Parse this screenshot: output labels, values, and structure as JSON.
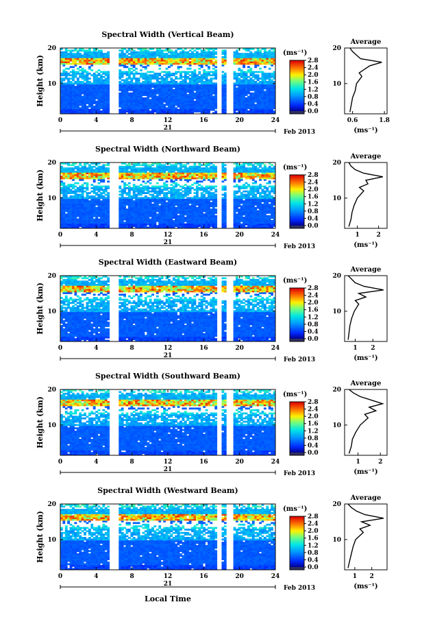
{
  "figure": {
    "xlabel": "Local Time",
    "date_label": "21",
    "month_label": "Feb 2013",
    "colorbar_unit": "(ms⁻¹)",
    "colorbar_ticks": [
      "0.0",
      "0.4",
      "0.8",
      "1.2",
      "1.6",
      "2.0",
      "2.4",
      "2.8"
    ],
    "avg_title": "Average",
    "avg_xlabel": "(ms⁻¹)"
  },
  "chart_data": [
    {
      "type": "heatmap",
      "title": "Spectral Width (Vertical Beam)",
      "ylabel": "Height (km)",
      "xlabel": "Local Time",
      "x_ticks": [
        0,
        4,
        8,
        12,
        16,
        20,
        24
      ],
      "y_ticks": [
        10,
        20
      ],
      "xlim": [
        0,
        24
      ],
      "ylim": [
        1.5,
        20
      ],
      "color_range": [
        0,
        2.8
      ],
      "colorbar_label": "(ms⁻¹)",
      "data_gaps_hours": [
        [
          5.4,
          6.5
        ],
        [
          17.6,
          18.0
        ],
        [
          18.6,
          19.2
        ]
      ],
      "average_profile": {
        "title": "Average",
        "xlabel": "(ms⁻¹)",
        "x_ticks": [
          "0.6",
          "1.8"
        ],
        "y_ticks": [
          10,
          20
        ],
        "height_km": [
          2,
          4,
          6,
          8,
          10,
          12,
          13,
          14,
          15,
          16,
          17,
          18,
          19,
          20
        ],
        "width_ms": [
          0.5,
          0.55,
          0.6,
          0.7,
          0.75,
          0.95,
          0.85,
          1.05,
          1.25,
          1.7,
          0.9,
          0.75,
          0.6,
          0.5
        ]
      }
    },
    {
      "type": "heatmap",
      "title": "Spectral Width (Northward Beam)",
      "ylabel": "Height (km)",
      "xlabel": "Local Time",
      "x_ticks": [
        0,
        4,
        8,
        12,
        16,
        20,
        24
      ],
      "y_ticks": [
        10,
        20
      ],
      "xlim": [
        0,
        24
      ],
      "ylim": [
        1.5,
        20
      ],
      "color_range": [
        0,
        2.8
      ],
      "colorbar_label": "(ms⁻¹)",
      "data_gaps_hours": [
        [
          5.4,
          6.5
        ],
        [
          17.6,
          18.0
        ],
        [
          18.6,
          19.2
        ]
      ],
      "average_profile": {
        "title": "Average",
        "xlabel": "(ms⁻¹)",
        "x_ticks": [
          "1",
          "2"
        ],
        "y_ticks": [
          10,
          20
        ],
        "height_km": [
          2,
          4,
          6,
          8,
          10,
          12,
          13,
          14,
          15,
          16,
          17,
          18,
          19,
          20
        ],
        "width_ms": [
          0.6,
          0.7,
          0.75,
          0.85,
          1.0,
          1.3,
          1.1,
          1.5,
          1.4,
          2.2,
          1.3,
          0.9,
          0.7,
          0.6
        ]
      }
    },
    {
      "type": "heatmap",
      "title": "Spectral Width (Eastward Beam)",
      "ylabel": "Height (km)",
      "xlabel": "Local Time",
      "x_ticks": [
        0,
        4,
        8,
        12,
        16,
        20,
        24
      ],
      "y_ticks": [
        10,
        20
      ],
      "xlim": [
        0,
        24
      ],
      "ylim": [
        1.5,
        20
      ],
      "color_range": [
        0,
        2.8
      ],
      "colorbar_label": "(ms⁻¹)",
      "data_gaps_hours": [
        [
          5.4,
          6.5
        ],
        [
          17.6,
          18.0
        ],
        [
          18.6,
          19.2
        ]
      ],
      "average_profile": {
        "title": "Average",
        "xlabel": "(ms⁻¹)",
        "x_ticks": [
          "1",
          "2"
        ],
        "y_ticks": [
          10,
          20
        ],
        "height_km": [
          2,
          4,
          6,
          8,
          10,
          12,
          13,
          14,
          15,
          16,
          17,
          18,
          19,
          20
        ],
        "width_ms": [
          0.6,
          0.65,
          0.7,
          0.8,
          0.95,
          1.2,
          1.0,
          1.6,
          1.2,
          2.6,
          1.5,
          1.0,
          0.8,
          0.6
        ]
      }
    },
    {
      "type": "heatmap",
      "title": "Spectral Width (Southward Beam)",
      "ylabel": "Height (km)",
      "xlabel": "Local Time",
      "x_ticks": [
        0,
        4,
        8,
        12,
        16,
        20,
        24
      ],
      "y_ticks": [
        10,
        20
      ],
      "xlim": [
        0,
        24
      ],
      "ylim": [
        1.5,
        20
      ],
      "color_range": [
        0,
        2.8
      ],
      "colorbar_label": "(ms⁻¹)",
      "data_gaps_hours": [
        [
          5.4,
          6.5
        ],
        [
          17.6,
          18.0
        ],
        [
          18.6,
          19.2
        ]
      ],
      "average_profile": {
        "title": "Average",
        "xlabel": "(ms⁻¹)",
        "x_ticks": [
          "1",
          "2"
        ],
        "y_ticks": [
          10,
          20
        ],
        "height_km": [
          2,
          4,
          6,
          8,
          10,
          12,
          13,
          14,
          15,
          16,
          17,
          18,
          19,
          20
        ],
        "width_ms": [
          0.6,
          0.7,
          0.75,
          0.9,
          1.1,
          1.45,
          1.3,
          1.8,
          1.5,
          2.1,
          1.6,
          1.1,
          0.8,
          0.6
        ]
      }
    },
    {
      "type": "heatmap",
      "title": "Spectral Width (Westward Beam)",
      "ylabel": "Height (km)",
      "xlabel": "Local Time",
      "x_ticks": [
        0,
        4,
        8,
        12,
        16,
        20,
        24
      ],
      "y_ticks": [
        10,
        20
      ],
      "xlim": [
        0,
        24
      ],
      "ylim": [
        1.5,
        20
      ],
      "color_range": [
        0,
        2.8
      ],
      "colorbar_label": "(ms⁻¹)",
      "data_gaps_hours": [
        [
          5.4,
          6.5
        ],
        [
          17.6,
          18.0
        ],
        [
          18.6,
          19.2
        ]
      ],
      "average_profile": {
        "title": "Average",
        "xlabel": "(ms⁻¹)",
        "x_ticks": [
          "1",
          "2"
        ],
        "y_ticks": [
          10,
          20
        ],
        "height_km": [
          2,
          4,
          6,
          8,
          10,
          12,
          13,
          14,
          15,
          16,
          17,
          18,
          19,
          20
        ],
        "width_ms": [
          0.6,
          0.7,
          0.8,
          0.9,
          1.05,
          1.5,
          1.3,
          1.9,
          1.4,
          2.7,
          1.6,
          1.1,
          0.8,
          0.6
        ]
      }
    }
  ]
}
